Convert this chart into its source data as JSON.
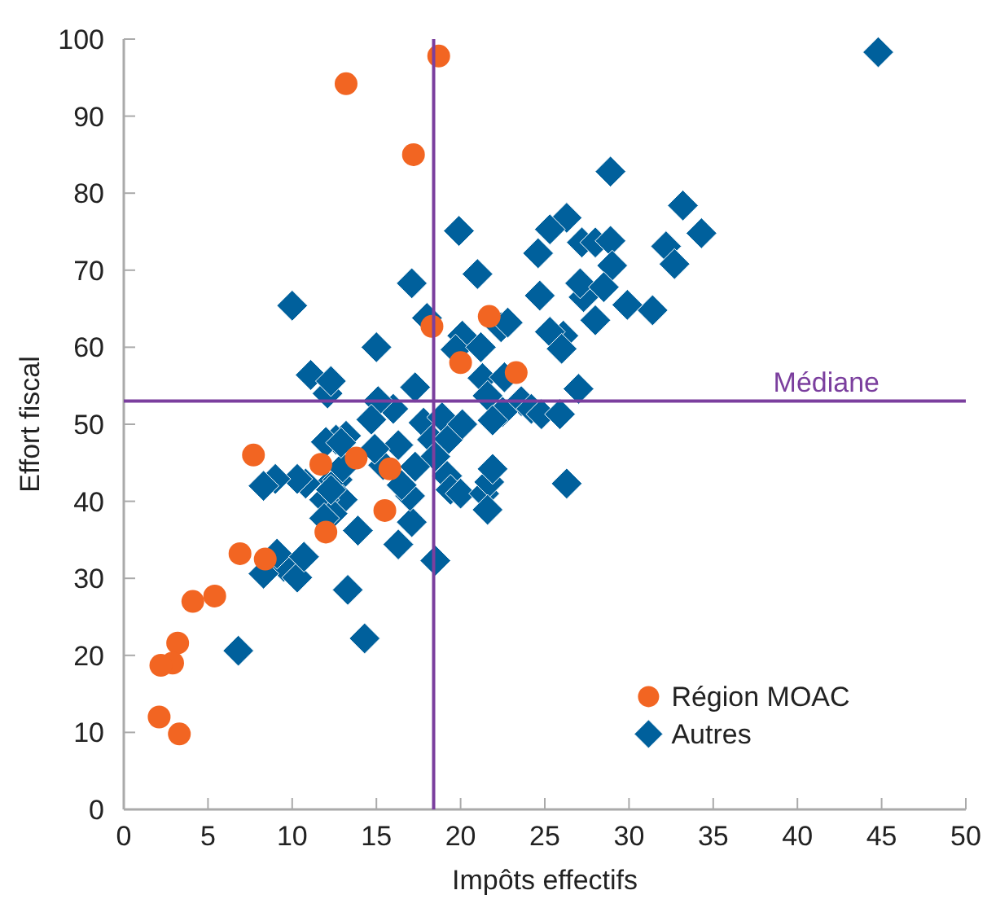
{
  "chart_data": {
    "type": "scatter",
    "xlabel": "Impôts effectifs",
    "ylabel": "Effort fiscal",
    "xlim": [
      0,
      50
    ],
    "ylim": [
      0,
      100
    ],
    "xticks": [
      0,
      5,
      10,
      15,
      20,
      25,
      30,
      35,
      40,
      45,
      50
    ],
    "yticks": [
      0,
      10,
      20,
      30,
      40,
      50,
      60,
      70,
      80,
      90,
      100
    ],
    "grid": false,
    "legend": "bottom right",
    "ref_lines": [
      {
        "axis": "x",
        "value": 18.4,
        "label": null,
        "color": "#7b3f9e"
      },
      {
        "axis": "y",
        "value": 53,
        "label": "Médiane",
        "color": "#7b3f9e"
      }
    ],
    "series": [
      {
        "name": "Autres",
        "color": "#00609c",
        "marker": "diamond",
        "x": [
          44.8,
          28.9,
          33.2,
          34.3,
          32.2,
          32.7,
          31.4,
          29.9,
          26.3,
          25.3,
          24.6,
          27.2,
          28,
          28.9,
          29,
          27.3,
          27.1,
          28.5,
          28,
          26.1,
          25.3,
          24.7,
          26,
          27,
          21,
          19.9,
          20.1,
          19.7,
          21.2,
          22.4,
          22.8,
          21.3,
          22.6,
          23.6,
          24.2,
          24.8,
          25.9,
          22.5,
          21.6,
          21.9,
          26.3,
          17.1,
          18,
          17.3,
          16,
          17.8,
          18.3,
          18.9,
          19.3,
          20.1,
          18.5,
          19.2,
          19.4,
          20,
          21.4,
          21.7,
          21.9,
          21.6,
          18.5,
          17.1,
          16.3,
          17,
          16.5,
          17.3,
          16.3,
          15,
          15.1,
          14.7,
          13.2,
          12.6,
          12,
          12.1,
          11.1,
          12.3,
          10,
          12.1,
          12.7,
          13,
          11.9,
          12.4,
          11.9,
          13,
          12.9,
          10.8,
          10.3,
          9,
          8.3,
          9.5,
          9.1,
          8.3,
          10.3,
          10.7,
          13.9,
          13.3,
          14.3,
          6.8,
          15.4,
          14.9,
          12.3
        ],
        "values": [
          98.3,
          82.8,
          78.4,
          74.8,
          73.1,
          70.8,
          64.8,
          65.5,
          76.8,
          75.3,
          72.2,
          73.6,
          73.6,
          73.8,
          70.6,
          66.5,
          68.3,
          67.8,
          63.5,
          61.5,
          62,
          66.7,
          59.8,
          54.6,
          69.5,
          75.1,
          61.5,
          59.7,
          60,
          62.6,
          63.2,
          56,
          56.1,
          53,
          52,
          51.3,
          51.3,
          51.6,
          53.7,
          50.5,
          42.3,
          68.3,
          63.8,
          54.8,
          52,
          50.2,
          48,
          50.9,
          48.1,
          50,
          45.8,
          43.3,
          41.5,
          41,
          41,
          42.5,
          44.2,
          38.9,
          32.3,
          37.3,
          34.4,
          40.7,
          42.1,
          44.5,
          47.3,
          60,
          53,
          50.6,
          48.5,
          48,
          47.7,
          54,
          56.4,
          55.6,
          65.4,
          42,
          42.8,
          40.2,
          40.2,
          38.4,
          37.8,
          44.4,
          47.6,
          42.3,
          42.9,
          42.9,
          42,
          31.5,
          33.2,
          30.6,
          30.1,
          32.8,
          36.2,
          28.5,
          22.2,
          20.6,
          44.7,
          46.8,
          41.5
        ]
      },
      {
        "name": "Région MOAC",
        "color": "#f26522",
        "marker": "circle",
        "x": [
          18.7,
          13.2,
          17.2,
          18.3,
          21.7,
          23.3,
          20,
          15.8,
          15.5,
          13.8,
          11.7,
          12,
          7.7,
          8.4,
          6.9,
          5.4,
          4.1,
          3.2,
          2.9,
          2.2,
          2.1,
          3.3
        ],
        "values": [
          97.8,
          94.2,
          85,
          62.7,
          64,
          56.7,
          58,
          44.2,
          38.8,
          45.6,
          44.8,
          36,
          46,
          32.5,
          33.2,
          27.7,
          27,
          21.6,
          19,
          18.7,
          12,
          9.8
        ]
      }
    ]
  }
}
